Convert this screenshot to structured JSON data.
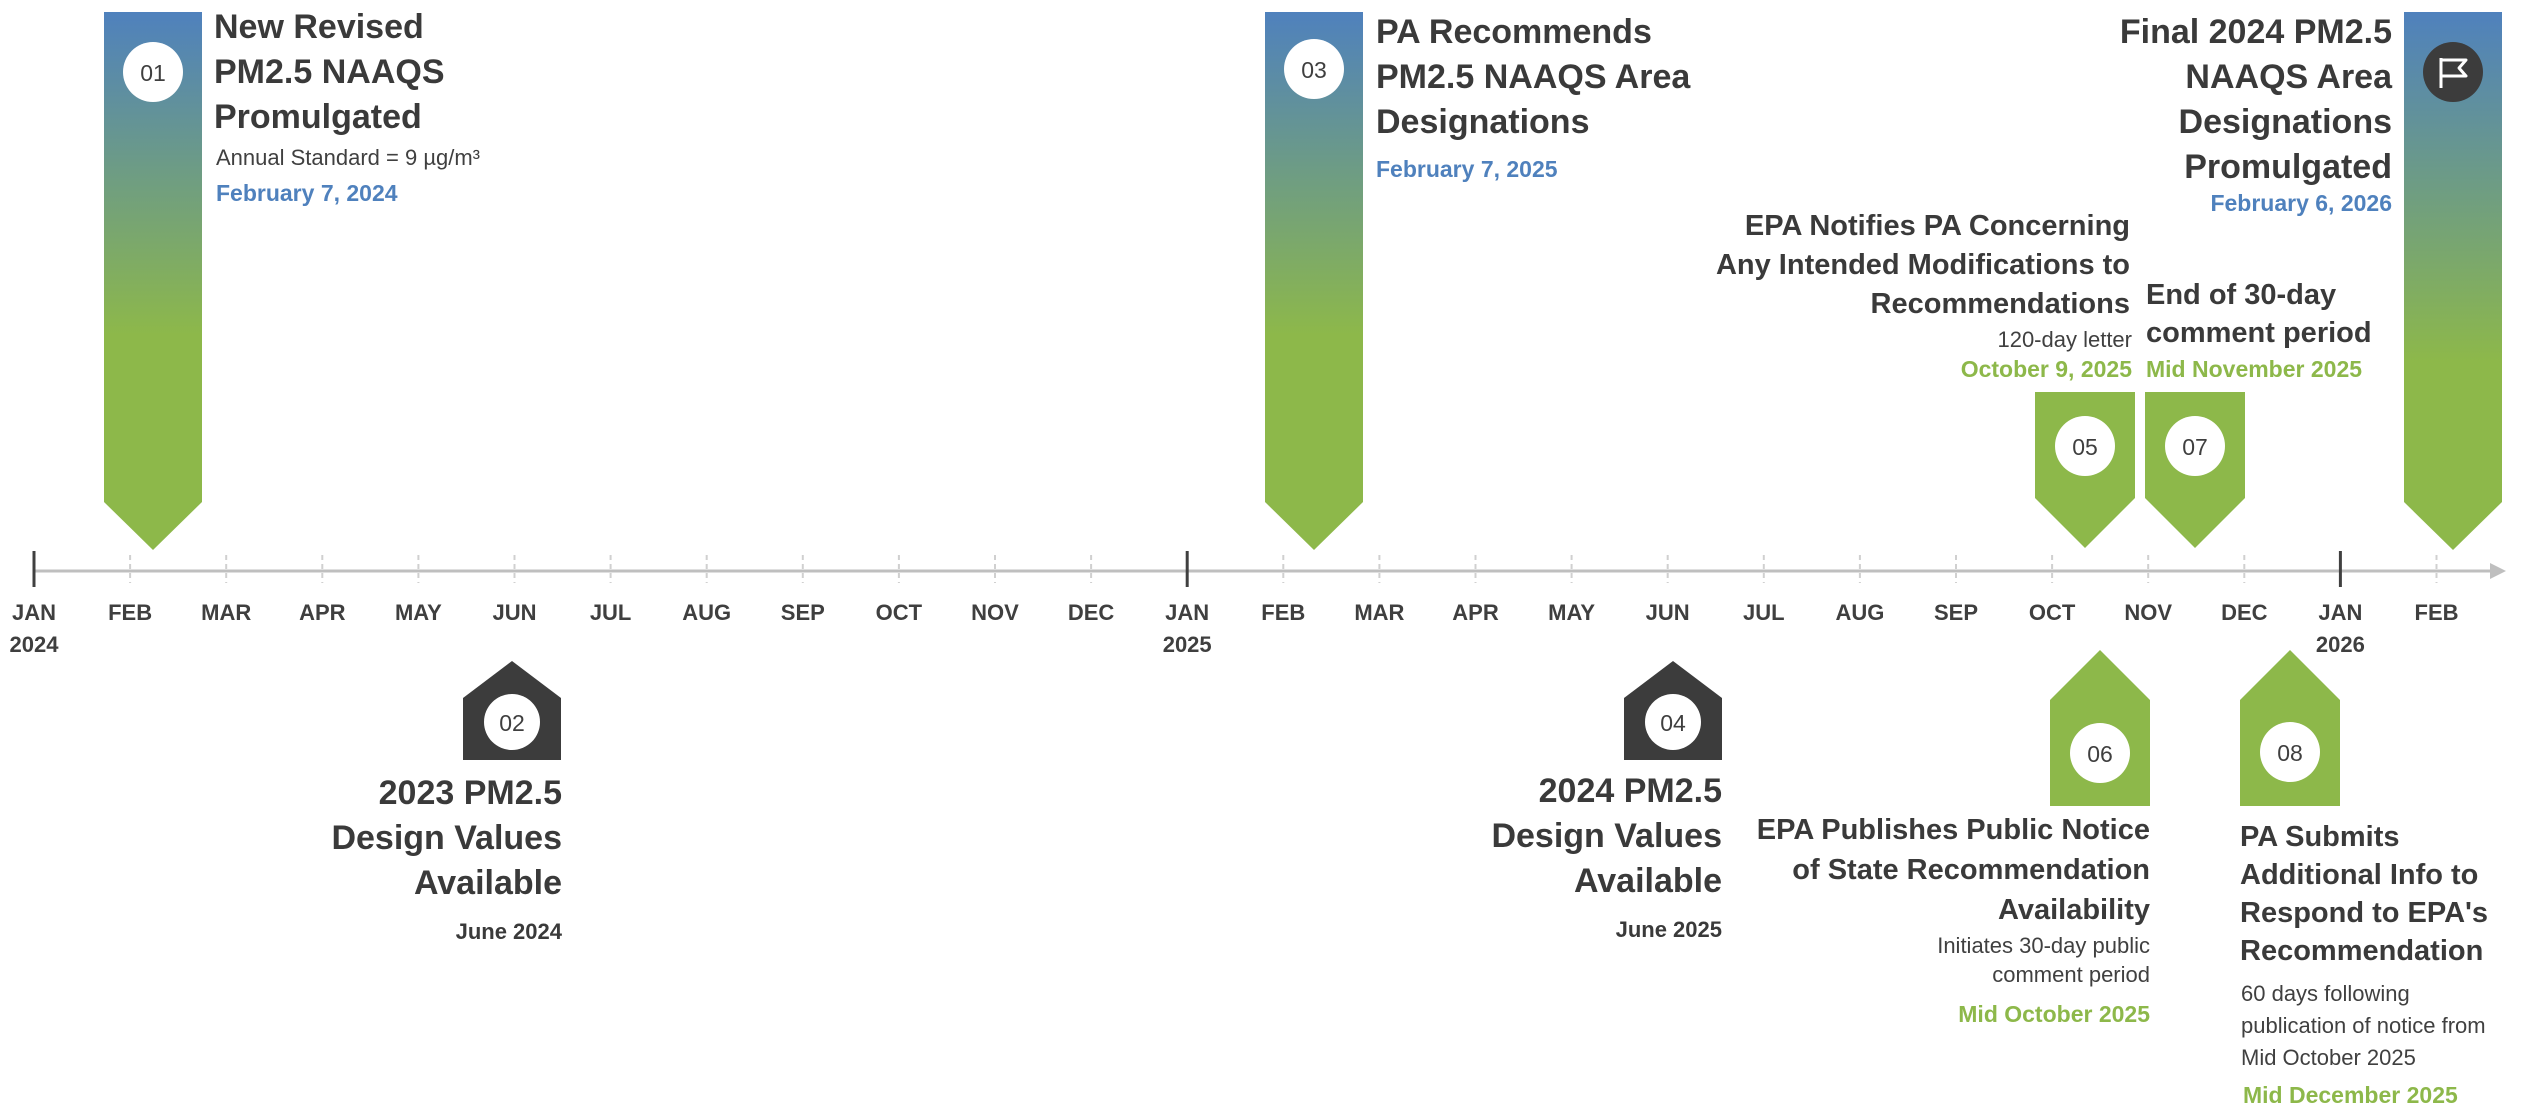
{
  "axis": {
    "months": [
      "JAN",
      "FEB",
      "MAR",
      "APR",
      "MAY",
      "JUN",
      "JUL",
      "AUG",
      "SEP",
      "OCT",
      "NOV",
      "DEC",
      "JAN",
      "FEB",
      "MAR",
      "APR",
      "MAY",
      "JUN",
      "JUL",
      "AUG",
      "SEP",
      "OCT",
      "NOV",
      "DEC",
      "JAN",
      "FEB"
    ],
    "years": [
      {
        "label": "2024",
        "month_index": 0
      },
      {
        "label": "2025",
        "month_index": 12
      },
      {
        "label": "2026",
        "month_index": 24
      }
    ]
  },
  "milestones": {
    "m01": {
      "badge": "01",
      "title_lines": [
        "New Revised",
        "PM2.5 NAAQS",
        "Promulgated"
      ],
      "detail": "Annual Standard = 9 µg/m³",
      "date": "February 7, 2024",
      "month_value": 1.2
    },
    "m02": {
      "badge": "02",
      "title_lines": [
        "2023 PM2.5",
        "Design Values",
        "Available"
      ],
      "date": "June 2024",
      "month_value": 5.0
    },
    "m03": {
      "badge": "03",
      "title_lines": [
        "PA Recommends",
        "PM2.5 NAAQS Area",
        "Designations"
      ],
      "date": "February 7, 2025",
      "month_value": 13.35
    },
    "m04": {
      "badge": "04",
      "title_lines": [
        "2024 PM2.5",
        "Design Values",
        "Available"
      ],
      "date": "June 2025",
      "month_value": 17.0
    },
    "m05": {
      "badge": "05",
      "title_lines": [
        "EPA Notifies PA Concerning",
        "Any Intended Modifications to",
        "Recommendations"
      ],
      "detail": "120-day letter",
      "date": "October 9, 2025",
      "month_value": 21.4
    },
    "m06": {
      "badge": "06",
      "title_lines": [
        "EPA Publishes Public Notice",
        "of State Recommendation",
        "Availability"
      ],
      "detail_lines": [
        "Initiates 30-day public",
        "comment period"
      ],
      "date": "Mid October 2025",
      "month_value": 21.55
    },
    "m07": {
      "badge": "07",
      "title_lines": [
        "End of 30-day",
        "comment period"
      ],
      "date": "Mid November 2025",
      "month_value": 22.5
    },
    "m08": {
      "badge": "08",
      "title_lines": [
        "PA Submits",
        "Additional Info to",
        "Respond to EPA's",
        "Recommendation"
      ],
      "detail_lines": [
        "60 days following",
        "publication of notice from",
        "Mid October 2025"
      ],
      "date": "Mid December 2025",
      "month_value": 23.5
    },
    "final": {
      "icon": "flag-icon",
      "title_lines": [
        "Final 2024 PM2.5",
        "NAAQS Area",
        "Designations",
        "Promulgated"
      ],
      "date": "February 6, 2026",
      "month_value": 25.2
    }
  },
  "colors": {
    "blue": "#4f81bd",
    "green": "#8db84a",
    "dark": "#3c3c3c",
    "axis": "#bfbfbf"
  }
}
